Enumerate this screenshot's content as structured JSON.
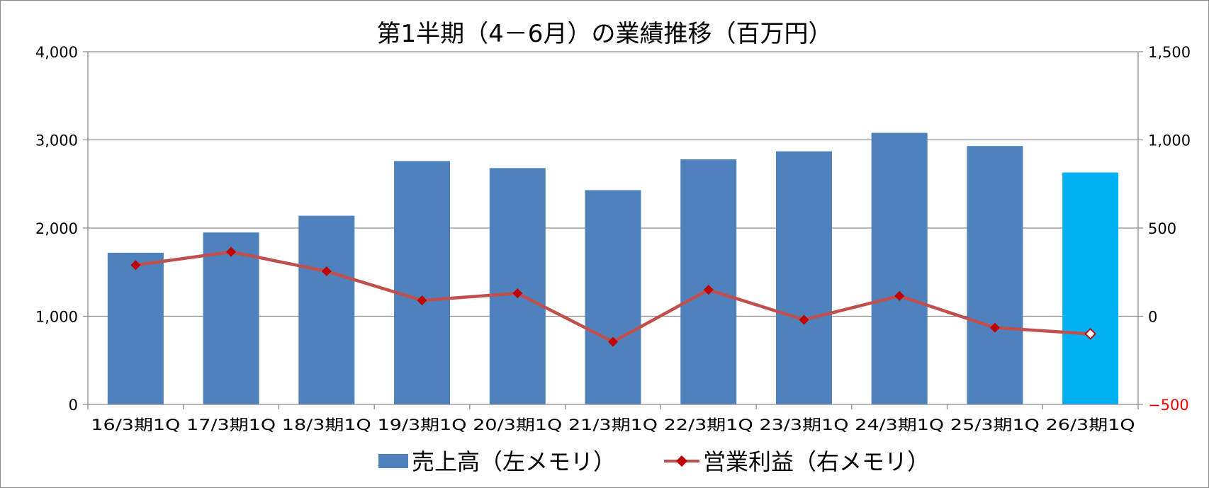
{
  "chart_data": {
    "type": "bar",
    "title": "第1半期（4－6月）の業績推移（百万円）",
    "categories": [
      "16/3期1Q",
      "17/3期1Q",
      "18/3期1Q",
      "19/3期1Q",
      "20/3期1Q",
      "21/3期1Q",
      "22/3期1Q",
      "23/3期1Q",
      "24/3期1Q",
      "25/3期1Q",
      "26/3期1Q"
    ],
    "series": [
      {
        "name": "売上高（左メモリ）",
        "type": "bar",
        "axis": "left",
        "color": "#4f81bd",
        "highlight_color": "#00b0f0",
        "highlight_index": 10,
        "values": [
          1720,
          1950,
          2140,
          2760,
          2680,
          2430,
          2780,
          2870,
          3080,
          2930,
          2630
        ]
      },
      {
        "name": "営業利益（右メモリ）",
        "type": "line",
        "axis": "right",
        "color": "#c0504d",
        "marker_color": "#c00000",
        "open_marker_index": 10,
        "values": [
          290,
          365,
          255,
          90,
          130,
          -145,
          150,
          -20,
          115,
          -65,
          -100
        ]
      }
    ],
    "y_left": {
      "lim": [
        0,
        4000
      ],
      "ticks": [
        0,
        1000,
        2000,
        3000,
        4000
      ],
      "tick_labels": [
        "0",
        "1,000",
        "2,000",
        "3,000",
        "4,000"
      ]
    },
    "y_right": {
      "lim": [
        -500,
        1500
      ],
      "ticks": [
        -500,
        0,
        500,
        1000,
        1500
      ],
      "tick_labels": [
        "−500",
        "0",
        "500",
        "1,000",
        "1,500"
      ],
      "negative_color": "#ff0000"
    },
    "grid": true,
    "legend": "bottom"
  }
}
